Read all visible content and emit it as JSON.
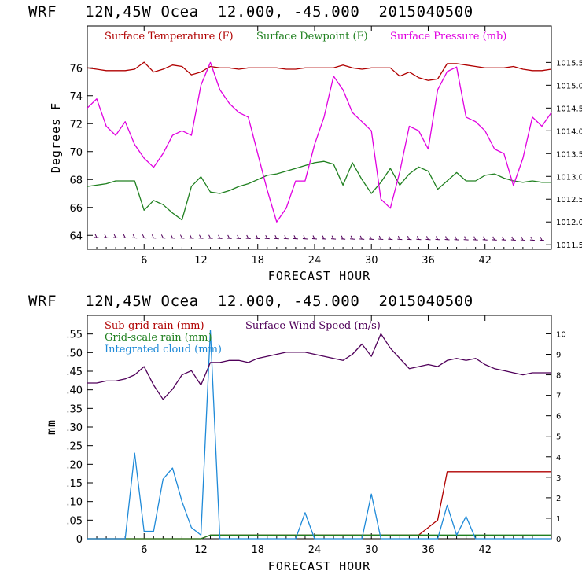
{
  "chart_data": [
    {
      "type": "line",
      "title": "WRF   12N,45W Ocea  12.000, -45.000  2015040500",
      "xlabel": "FORECAST HOUR",
      "ylabel": "Degrees F",
      "xlim": [
        0,
        49
      ],
      "ylim": [
        63,
        79
      ],
      "xticks": [
        "6",
        "12",
        "18",
        "24",
        "30",
        "36",
        "42"
      ],
      "yticks": [
        "64",
        "66",
        "68",
        "70",
        "72",
        "74",
        "76"
      ],
      "y2label": "",
      "y2lim": [
        1011.4,
        1016.3
      ],
      "y2ticks": [
        "1011.5",
        "1012.0",
        "1012.5",
        "1013.0",
        "1013.5",
        "1014.0",
        "1014.5",
        "1015.0",
        "1015.5"
      ],
      "x": [
        0,
        1,
        2,
        3,
        4,
        5,
        6,
        7,
        8,
        9,
        10,
        11,
        12,
        13,
        14,
        15,
        16,
        17,
        18,
        19,
        20,
        21,
        22,
        23,
        24,
        25,
        26,
        27,
        28,
        29,
        30,
        31,
        32,
        33,
        34,
        35,
        36,
        37,
        38,
        39,
        40,
        41,
        42,
        43,
        44,
        45,
        46,
        47,
        48,
        49
      ],
      "series": [
        {
          "name": "Surface Temperature (F)",
          "color": "#b00000",
          "axis": "left",
          "values": [
            76.0,
            75.9,
            75.8,
            75.8,
            75.8,
            75.9,
            76.4,
            75.7,
            75.9,
            76.2,
            76.1,
            75.5,
            75.7,
            76.1,
            76.0,
            76.0,
            75.9,
            76.0,
            76.0,
            76.0,
            76.0,
            75.9,
            75.9,
            76.0,
            76.0,
            76.0,
            76.0,
            76.2,
            76.0,
            75.9,
            76.0,
            76.0,
            76.0,
            75.4,
            75.7,
            75.3,
            75.1,
            75.2,
            76.3,
            76.3,
            76.2,
            76.1,
            76.0,
            76.0,
            76.0,
            76.1,
            75.9,
            75.8,
            75.8,
            75.9
          ]
        },
        {
          "name": "Surface Dewpoint (F)",
          "color": "#208020",
          "axis": "left",
          "values": [
            67.5,
            67.6,
            67.7,
            67.9,
            67.9,
            67.9,
            65.8,
            66.5,
            66.2,
            65.6,
            65.1,
            67.5,
            68.2,
            67.1,
            67.0,
            67.2,
            67.5,
            67.7,
            68.0,
            68.3,
            68.4,
            68.6,
            68.8,
            69.0,
            69.2,
            69.3,
            69.1,
            67.6,
            69.2,
            68.0,
            67.0,
            67.8,
            68.8,
            67.6,
            68.4,
            68.9,
            68.6,
            67.3,
            67.9,
            68.5,
            67.9,
            67.9,
            68.3,
            68.4,
            68.1,
            67.9,
            67.8,
            67.9,
            67.8,
            67.8
          ]
        },
        {
          "name": "Surface Pressure (mb)",
          "color": "#e000e0",
          "axis": "right",
          "values": [
            1014.5,
            1014.7,
            1014.1,
            1013.9,
            1014.2,
            1013.7,
            1013.4,
            1013.2,
            1013.5,
            1013.9,
            1014.0,
            1013.9,
            1015.0,
            1015.5,
            1014.9,
            1014.6,
            1014.4,
            1014.3,
            1013.5,
            1012.7,
            1012.0,
            1012.3,
            1012.9,
            1012.9,
            1013.7,
            1014.3,
            1015.2,
            1014.9,
            1014.4,
            1014.2,
            1014.0,
            1012.5,
            1012.3,
            1013.1,
            1014.1,
            1014.0,
            1013.6,
            1014.9,
            1015.3,
            1015.4,
            1014.3,
            1014.2,
            1014.0,
            1013.6,
            1013.5,
            1012.8,
            1013.4,
            1014.3,
            1014.1,
            1014.4
          ]
        }
      ]
    },
    {
      "type": "line",
      "title": "WRF   12N,45W Ocea  12.000, -45.000  2015040500",
      "xlabel": "FORECAST HOUR",
      "ylabel": "mm",
      "xlim": [
        0,
        49
      ],
      "ylim": [
        0,
        0.6
      ],
      "xticks": [
        "6",
        "12",
        "18",
        "24",
        "30",
        "36",
        "42"
      ],
      "yticks": [
        "0",
        ".05",
        ".10",
        ".15",
        ".20",
        ".25",
        ".30",
        ".35",
        ".40",
        ".45",
        ".50",
        ".55"
      ],
      "y2label": "",
      "y2lim": [
        0,
        10.9
      ],
      "y2ticks": [
        "0",
        "1",
        "2",
        "3",
        "4",
        "5",
        "6",
        "7",
        "8",
        "9",
        "10"
      ],
      "x": [
        0,
        1,
        2,
        3,
        4,
        5,
        6,
        7,
        8,
        9,
        10,
        11,
        12,
        13,
        14,
        15,
        16,
        17,
        18,
        19,
        20,
        21,
        22,
        23,
        24,
        25,
        26,
        27,
        28,
        29,
        30,
        31,
        32,
        33,
        34,
        35,
        36,
        37,
        38,
        39,
        40,
        41,
        42,
        43,
        44,
        45,
        46,
        47,
        48,
        49
      ],
      "series": [
        {
          "name": "Sub-grid rain (mm)",
          "color": "#b00000",
          "axis": "left",
          "values": [
            0,
            0,
            0,
            0,
            0,
            0,
            0,
            0,
            0,
            0,
            0,
            0,
            0,
            0.01,
            0.01,
            0.01,
            0.01,
            0.01,
            0.01,
            0.01,
            0.01,
            0.01,
            0.01,
            0.01,
            0.01,
            0.01,
            0.01,
            0.01,
            0.01,
            0.01,
            0.01,
            0.01,
            0.01,
            0.01,
            0.01,
            0.01,
            0.03,
            0.05,
            0.18,
            0.18,
            0.18,
            0.18,
            0.18,
            0.18,
            0.18,
            0.18,
            0.18,
            0.18,
            0.18,
            0.18
          ]
        },
        {
          "name": "Grid-scale rain (mm)",
          "color": "#208020",
          "axis": "left",
          "values": [
            0,
            0,
            0,
            0,
            0,
            0,
            0,
            0,
            0,
            0,
            0,
            0,
            0,
            0.01,
            0.01,
            0.01,
            0.01,
            0.01,
            0.01,
            0.01,
            0.01,
            0.01,
            0.01,
            0.01,
            0.01,
            0.01,
            0.01,
            0.01,
            0.01,
            0.01,
            0.01,
            0.01,
            0.01,
            0.01,
            0.01,
            0.01,
            0.01,
            0.01,
            0.01,
            0.01,
            0.01,
            0.01,
            0.01,
            0.01,
            0.01,
            0.01,
            0.01,
            0.01,
            0.01,
            0.01
          ]
        },
        {
          "name": "Integrated cloud (mm)",
          "color": "#1f8ad8",
          "axis": "left",
          "values": [
            0,
            0,
            0,
            0,
            0,
            0.23,
            0.02,
            0.02,
            0.16,
            0.19,
            0.1,
            0.03,
            0.01,
            0.56,
            0,
            0,
            0,
            0,
            0,
            0,
            0,
            0,
            0,
            0.07,
            0,
            0,
            0,
            0,
            0,
            0,
            0.12,
            0,
            0,
            0,
            0,
            0,
            0,
            0,
            0.09,
            0.01,
            0.06,
            0,
            0,
            0,
            0,
            0,
            0,
            0,
            0,
            0
          ]
        },
        {
          "name": "Surface Wind Speed (m/s)",
          "color": "#50005a",
          "axis": "right",
          "values": [
            7.6,
            7.6,
            7.7,
            7.7,
            7.8,
            8.0,
            8.4,
            7.5,
            6.8,
            7.3,
            8.0,
            8.2,
            7.5,
            8.6,
            8.6,
            8.7,
            8.7,
            8.6,
            8.8,
            8.9,
            9.0,
            9.1,
            9.1,
            9.1,
            9.0,
            8.9,
            8.8,
            8.7,
            9.0,
            9.5,
            8.9,
            10.0,
            9.3,
            8.8,
            8.3,
            8.4,
            8.5,
            8.4,
            8.7,
            8.8,
            8.7,
            8.8,
            8.5,
            8.3,
            8.2,
            8.1,
            8.0,
            8.1,
            8.1,
            8.1
          ]
        }
      ]
    }
  ]
}
